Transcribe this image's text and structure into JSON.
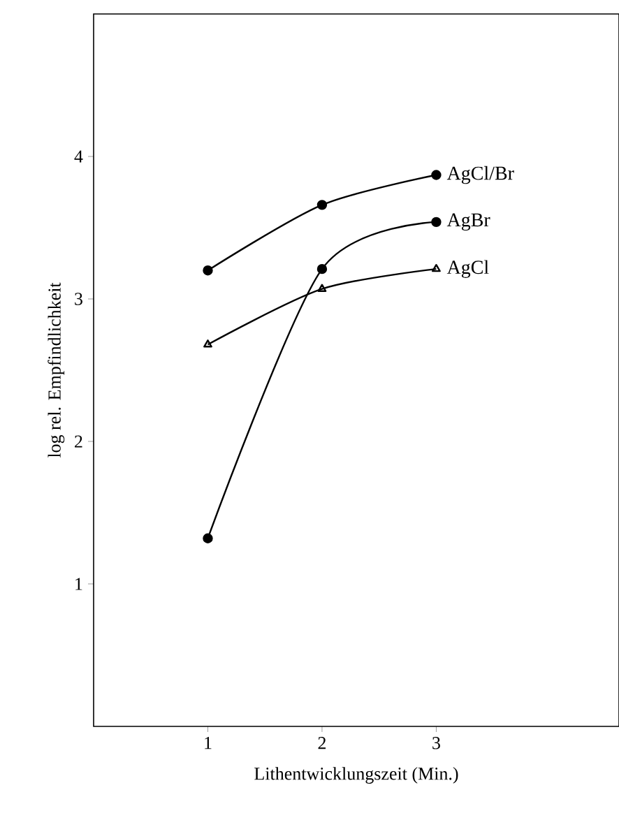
{
  "chart_data": {
    "type": "line",
    "xlabel": "Lithentwicklungszeit (Min.)",
    "ylabel": "log rel. Empfindlichkeit",
    "x": [
      1,
      2,
      3
    ],
    "xlim": [
      0,
      4.6
    ],
    "ylim": [
      0,
      5
    ],
    "xticks": [
      1,
      2,
      3
    ],
    "yticks": [
      1,
      2,
      3,
      4
    ],
    "grid": false,
    "legend": false,
    "line_style": "solid",
    "series": [
      {
        "name": "AgCl/Br",
        "color": "#000000",
        "marker": "circle",
        "values": [
          3.2,
          3.66,
          3.87
        ]
      },
      {
        "name": "AgBr",
        "color": "#000000",
        "marker": "circle",
        "values": [
          1.32,
          3.21,
          3.54
        ]
      },
      {
        "name": "AgCl",
        "color": "#000000",
        "marker": "triangle",
        "values": [
          2.68,
          3.07,
          3.21
        ]
      }
    ]
  }
}
